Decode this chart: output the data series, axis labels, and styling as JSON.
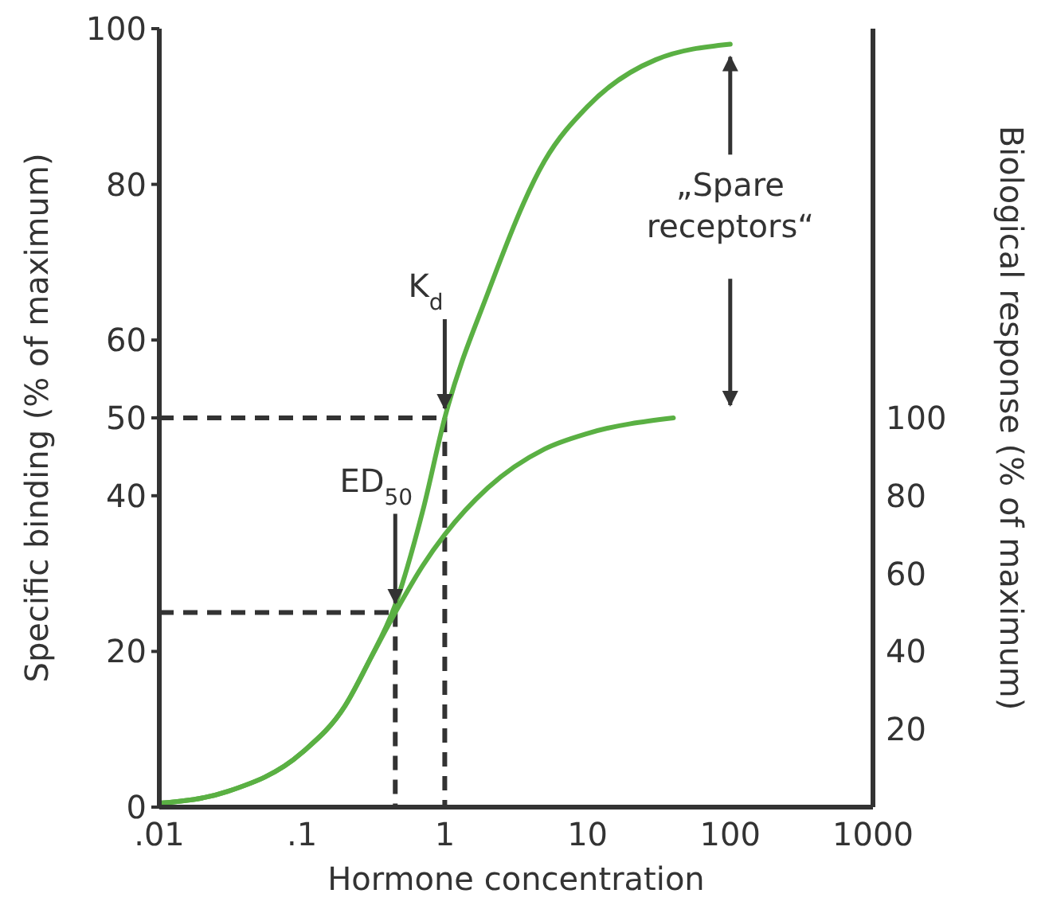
{
  "chart_data": {
    "type": "line",
    "xlabel": "Hormone concentration",
    "ylabel": "Specific binding (% of maximum)",
    "y2label": "Biological response (% of maximum)",
    "log": "x",
    "xlim": [
      0.01,
      1000
    ],
    "xticks": [
      {
        "value": 0.01,
        "label": ".01"
      },
      {
        "value": 0.1,
        "label": ".1"
      },
      1,
      10,
      100,
      1000
    ],
    "ylim": [
      0,
      100
    ],
    "yticks": [
      0,
      20,
      40,
      50,
      60,
      80,
      100
    ],
    "y2lim": [
      0,
      200
    ],
    "y2ticks": [
      20,
      40,
      60,
      80,
      100
    ],
    "grid": false,
    "marker": "none",
    "line_style": "solid",
    "series": [
      {
        "color": "#5ab043",
        "x": [
          0.01,
          0.03,
          0.1,
          0.2,
          0.3,
          0.45,
          0.7,
          1,
          2,
          5,
          10,
          30,
          100
        ],
        "values": [
          0.5,
          2,
          7,
          13,
          19,
          26,
          38,
          50,
          66,
          83,
          90,
          96,
          98
        ]
      },
      {
        "color": "#5ab043",
        "axis": "y2",
        "x": [
          0.01,
          0.03,
          0.1,
          0.2,
          0.3,
          0.45,
          0.7,
          1,
          2,
          5,
          10,
          40
        ],
        "values": [
          1,
          4,
          14,
          26,
          38,
          50,
          62,
          70,
          82,
          92,
          96,
          100
        ]
      }
    ],
    "annotations": [
      {
        "text": "K$_{d}$",
        "x": 1,
        "y": 50
      },
      {
        "text": "ED$_{50}$",
        "x": 0.45,
        "y": 25
      },
      {
        "text": "„Spare receptors“",
        "x": 100
      }
    ]
  }
}
